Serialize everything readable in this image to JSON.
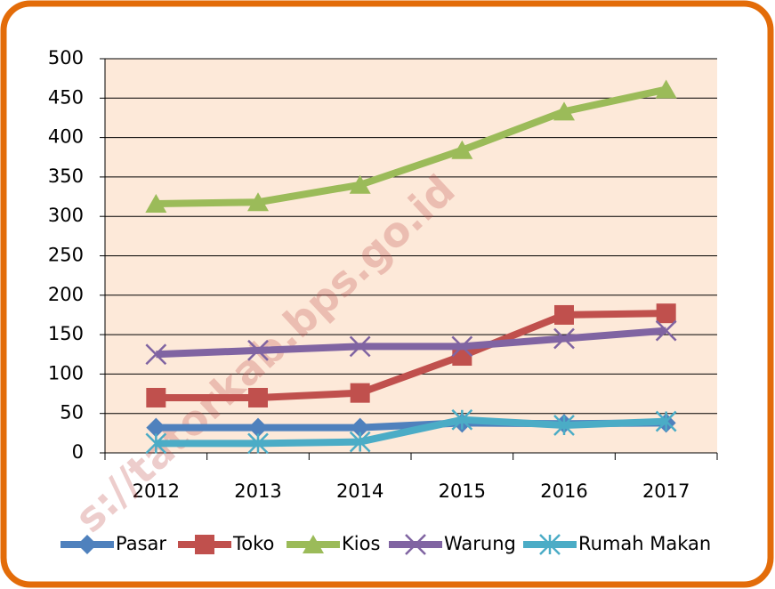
{
  "chart_data": {
    "type": "line",
    "watermark": "s://tatorkab.bps.go.id",
    "categories": [
      "2012",
      "2013",
      "2014",
      "2015",
      "2016",
      "2017"
    ],
    "series": [
      {
        "name": "Pasar",
        "color": "#4f81bd",
        "marker": "diamond",
        "values": [
          32,
          32,
          32,
          38,
          37,
          38
        ]
      },
      {
        "name": "Toko",
        "color": "#c0504d",
        "marker": "square",
        "values": [
          70,
          70,
          76,
          123,
          175,
          177
        ]
      },
      {
        "name": "Kios",
        "color": "#9bbb59",
        "marker": "triangle",
        "values": [
          316,
          318,
          340,
          384,
          433,
          461
        ]
      },
      {
        "name": "Warung",
        "color": "#8064a2",
        "marker": "x",
        "values": [
          125,
          130,
          135,
          135,
          145,
          155
        ]
      },
      {
        "name": "Rumah Makan",
        "color": "#4bacc6",
        "marker": "asterisk",
        "values": [
          12,
          12,
          14,
          42,
          35,
          40
        ]
      }
    ],
    "ylim": [
      0,
      500
    ],
    "yticks": [
      0,
      50,
      100,
      150,
      200,
      250,
      300,
      350,
      400,
      450,
      500
    ],
    "grid": true,
    "legend": "bottom",
    "plot_background": "#fde9d9"
  }
}
